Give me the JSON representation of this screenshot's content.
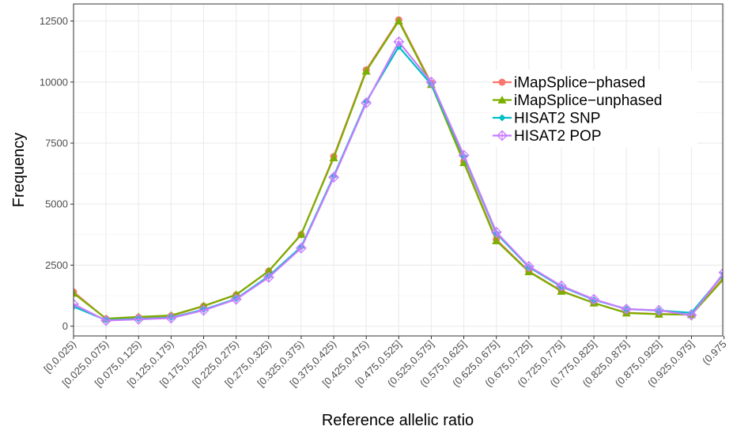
{
  "chart_data": {
    "type": "line",
    "xlabel": "Reference allelic ratio",
    "ylabel": "Frequency",
    "categories": [
      "[0,0.025)",
      "[0.025,0.075)",
      "[0.075,0.125)",
      "[0.125,0.175)",
      "[0.175,0.225)",
      "[0.225,0.275)",
      "[0.275,0.325)",
      "[0.325,0.375)",
      "[0.375,0.425)",
      "[0.425,0.475)",
      "[0.475,0.525]",
      "(0.525,0.575]",
      "(0.575,0.625]",
      "(0.625,0.675]",
      "(0.675,0.725]",
      "(0.725,0.775]",
      "(0.775,0.825]",
      "(0.825,0.875]",
      "(0.875,0.925]",
      "(0.925,0.975]",
      "(0.975"
    ],
    "y_ticks": [
      0,
      2500,
      5000,
      7500,
      10000,
      12500
    ],
    "ylim": [
      -400,
      13200
    ],
    "grid": true,
    "legend_position": "right",
    "series": [
      {
        "name": "iMapSplice−phased",
        "color": "#f8766d",
        "marker": "circle",
        "values": [
          1400,
          300,
          360,
          420,
          820,
          1280,
          2250,
          3750,
          6950,
          10500,
          12550,
          9950,
          6750,
          3550,
          2250,
          1450,
          950,
          550,
          500,
          480,
          2000
        ]
      },
      {
        "name": "iMapSplice−unphased",
        "color": "#7cae00",
        "marker": "triangle",
        "values": [
          1350,
          310,
          380,
          440,
          830,
          1290,
          2260,
          3760,
          6900,
          10450,
          12500,
          9900,
          6700,
          3500,
          2230,
          1430,
          950,
          540,
          490,
          470,
          1950
        ]
      },
      {
        "name": "HISAT2 SNP",
        "color": "#00bfc4",
        "marker": "diamond",
        "values": [
          800,
          250,
          300,
          350,
          680,
          1120,
          2050,
          3250,
          6150,
          9200,
          11450,
          9900,
          6950,
          3800,
          2420,
          1620,
          1080,
          700,
          640,
          550,
          2150
        ]
      },
      {
        "name": "HISAT2 POP",
        "color": "#c77cff",
        "marker": "diamond-plus",
        "values": [
          900,
          230,
          280,
          330,
          650,
          1100,
          2000,
          3200,
          6100,
          9150,
          11650,
          10000,
          7000,
          3850,
          2450,
          1650,
          1100,
          700,
          650,
          450,
          2200
        ]
      }
    ]
  }
}
